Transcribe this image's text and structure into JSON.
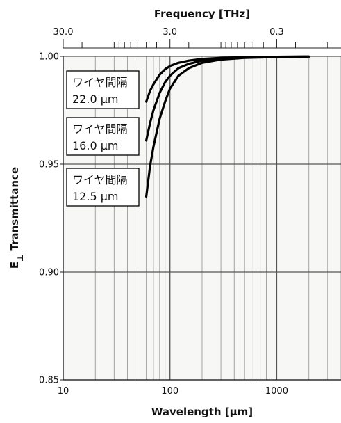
{
  "chart_data": {
    "type": "line",
    "x_scale": "log",
    "xlabel": "Wavelength [µm]",
    "xlim": [
      10,
      4000
    ],
    "x_ticks": [
      10,
      100,
      1000
    ],
    "x_tick_labels": [
      "10",
      "100",
      "1000"
    ],
    "top_axis": {
      "label": "Frequency [THz]",
      "ticks": [
        30.0,
        3.0,
        0.3
      ],
      "tick_labels": [
        "30.0",
        "3.0",
        "0.3"
      ]
    },
    "ylabel": "E⊥ Transmittance",
    "ylabel_main": "E",
    "ylabel_sub": "⊥",
    "ylabel_rest": " Transmittance",
    "ylim": [
      0.85,
      1.0
    ],
    "y_ticks": [
      0.85,
      0.9,
      0.95,
      1.0
    ],
    "y_tick_labels": [
      "0.85",
      "0.90",
      "0.95",
      "1.00"
    ],
    "grid": true,
    "series": [
      {
        "name": "ワイヤ間隔 22.0 µm",
        "label_line1": "ワイヤ間隔",
        "label_line2": "22.0 µm",
        "x": [
          60,
          65,
          70,
          80,
          90,
          100,
          120,
          150,
          200,
          300,
          500,
          1000,
          2000
        ],
        "y": [
          0.979,
          0.984,
          0.987,
          0.9915,
          0.994,
          0.9955,
          0.997,
          0.998,
          0.9988,
          0.9993,
          0.9996,
          0.9998,
          0.9999
        ]
      },
      {
        "name": "ワイヤ間隔 16.0 µm",
        "label_line1": "ワイヤ間隔",
        "label_line2": "16.0 µm",
        "x": [
          60,
          65,
          70,
          80,
          90,
          100,
          120,
          150,
          200,
          300,
          500,
          1000,
          2000
        ],
        "y": [
          0.961,
          0.969,
          0.975,
          0.983,
          0.988,
          0.991,
          0.9945,
          0.9965,
          0.998,
          0.999,
          0.9995,
          0.9998,
          0.9999
        ]
      },
      {
        "name": "ワイヤ間隔 12.5 µm",
        "label_line1": "ワイヤ間隔",
        "label_line2": "12.5 µm",
        "x": [
          60,
          65,
          70,
          80,
          90,
          100,
          120,
          150,
          200,
          300,
          500,
          1000,
          2000
        ],
        "y": [
          0.935,
          0.949,
          0.958,
          0.971,
          0.979,
          0.985,
          0.991,
          0.9945,
          0.997,
          0.9985,
          0.9993,
          0.9997,
          0.9999
        ]
      }
    ]
  }
}
